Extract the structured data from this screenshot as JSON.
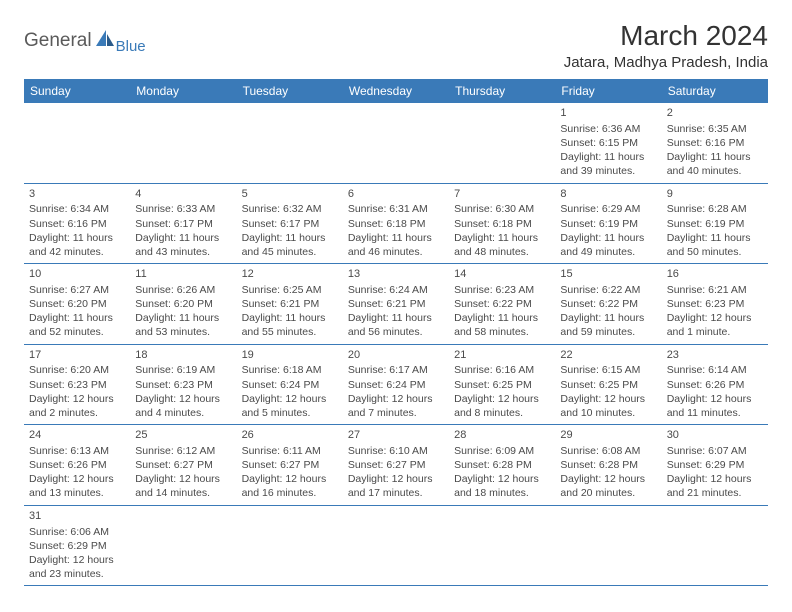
{
  "logo": {
    "general": "General",
    "blue": "Blue",
    "icon_color": "#3a7ab8"
  },
  "header": {
    "month_title": "March 2024",
    "location": "Jatara, Madhya Pradesh, India"
  },
  "colors": {
    "header_bg": "#3a7ab8",
    "header_text": "#ffffff",
    "row_border": "#3a7ab8",
    "text": "#4a4a4a"
  },
  "weekdays": [
    "Sunday",
    "Monday",
    "Tuesday",
    "Wednesday",
    "Thursday",
    "Friday",
    "Saturday"
  ],
  "weeks": [
    [
      null,
      null,
      null,
      null,
      null,
      {
        "n": "1",
        "sr": "Sunrise: 6:36 AM",
        "ss": "Sunset: 6:15 PM",
        "d1": "Daylight: 11 hours",
        "d2": "and 39 minutes."
      },
      {
        "n": "2",
        "sr": "Sunrise: 6:35 AM",
        "ss": "Sunset: 6:16 PM",
        "d1": "Daylight: 11 hours",
        "d2": "and 40 minutes."
      }
    ],
    [
      {
        "n": "3",
        "sr": "Sunrise: 6:34 AM",
        "ss": "Sunset: 6:16 PM",
        "d1": "Daylight: 11 hours",
        "d2": "and 42 minutes."
      },
      {
        "n": "4",
        "sr": "Sunrise: 6:33 AM",
        "ss": "Sunset: 6:17 PM",
        "d1": "Daylight: 11 hours",
        "d2": "and 43 minutes."
      },
      {
        "n": "5",
        "sr": "Sunrise: 6:32 AM",
        "ss": "Sunset: 6:17 PM",
        "d1": "Daylight: 11 hours",
        "d2": "and 45 minutes."
      },
      {
        "n": "6",
        "sr": "Sunrise: 6:31 AM",
        "ss": "Sunset: 6:18 PM",
        "d1": "Daylight: 11 hours",
        "d2": "and 46 minutes."
      },
      {
        "n": "7",
        "sr": "Sunrise: 6:30 AM",
        "ss": "Sunset: 6:18 PM",
        "d1": "Daylight: 11 hours",
        "d2": "and 48 minutes."
      },
      {
        "n": "8",
        "sr": "Sunrise: 6:29 AM",
        "ss": "Sunset: 6:19 PM",
        "d1": "Daylight: 11 hours",
        "d2": "and 49 minutes."
      },
      {
        "n": "9",
        "sr": "Sunrise: 6:28 AM",
        "ss": "Sunset: 6:19 PM",
        "d1": "Daylight: 11 hours",
        "d2": "and 50 minutes."
      }
    ],
    [
      {
        "n": "10",
        "sr": "Sunrise: 6:27 AM",
        "ss": "Sunset: 6:20 PM",
        "d1": "Daylight: 11 hours",
        "d2": "and 52 minutes."
      },
      {
        "n": "11",
        "sr": "Sunrise: 6:26 AM",
        "ss": "Sunset: 6:20 PM",
        "d1": "Daylight: 11 hours",
        "d2": "and 53 minutes."
      },
      {
        "n": "12",
        "sr": "Sunrise: 6:25 AM",
        "ss": "Sunset: 6:21 PM",
        "d1": "Daylight: 11 hours",
        "d2": "and 55 minutes."
      },
      {
        "n": "13",
        "sr": "Sunrise: 6:24 AM",
        "ss": "Sunset: 6:21 PM",
        "d1": "Daylight: 11 hours",
        "d2": "and 56 minutes."
      },
      {
        "n": "14",
        "sr": "Sunrise: 6:23 AM",
        "ss": "Sunset: 6:22 PM",
        "d1": "Daylight: 11 hours",
        "d2": "and 58 minutes."
      },
      {
        "n": "15",
        "sr": "Sunrise: 6:22 AM",
        "ss": "Sunset: 6:22 PM",
        "d1": "Daylight: 11 hours",
        "d2": "and 59 minutes."
      },
      {
        "n": "16",
        "sr": "Sunrise: 6:21 AM",
        "ss": "Sunset: 6:23 PM",
        "d1": "Daylight: 12 hours",
        "d2": "and 1 minute."
      }
    ],
    [
      {
        "n": "17",
        "sr": "Sunrise: 6:20 AM",
        "ss": "Sunset: 6:23 PM",
        "d1": "Daylight: 12 hours",
        "d2": "and 2 minutes."
      },
      {
        "n": "18",
        "sr": "Sunrise: 6:19 AM",
        "ss": "Sunset: 6:23 PM",
        "d1": "Daylight: 12 hours",
        "d2": "and 4 minutes."
      },
      {
        "n": "19",
        "sr": "Sunrise: 6:18 AM",
        "ss": "Sunset: 6:24 PM",
        "d1": "Daylight: 12 hours",
        "d2": "and 5 minutes."
      },
      {
        "n": "20",
        "sr": "Sunrise: 6:17 AM",
        "ss": "Sunset: 6:24 PM",
        "d1": "Daylight: 12 hours",
        "d2": "and 7 minutes."
      },
      {
        "n": "21",
        "sr": "Sunrise: 6:16 AM",
        "ss": "Sunset: 6:25 PM",
        "d1": "Daylight: 12 hours",
        "d2": "and 8 minutes."
      },
      {
        "n": "22",
        "sr": "Sunrise: 6:15 AM",
        "ss": "Sunset: 6:25 PM",
        "d1": "Daylight: 12 hours",
        "d2": "and 10 minutes."
      },
      {
        "n": "23",
        "sr": "Sunrise: 6:14 AM",
        "ss": "Sunset: 6:26 PM",
        "d1": "Daylight: 12 hours",
        "d2": "and 11 minutes."
      }
    ],
    [
      {
        "n": "24",
        "sr": "Sunrise: 6:13 AM",
        "ss": "Sunset: 6:26 PM",
        "d1": "Daylight: 12 hours",
        "d2": "and 13 minutes."
      },
      {
        "n": "25",
        "sr": "Sunrise: 6:12 AM",
        "ss": "Sunset: 6:27 PM",
        "d1": "Daylight: 12 hours",
        "d2": "and 14 minutes."
      },
      {
        "n": "26",
        "sr": "Sunrise: 6:11 AM",
        "ss": "Sunset: 6:27 PM",
        "d1": "Daylight: 12 hours",
        "d2": "and 16 minutes."
      },
      {
        "n": "27",
        "sr": "Sunrise: 6:10 AM",
        "ss": "Sunset: 6:27 PM",
        "d1": "Daylight: 12 hours",
        "d2": "and 17 minutes."
      },
      {
        "n": "28",
        "sr": "Sunrise: 6:09 AM",
        "ss": "Sunset: 6:28 PM",
        "d1": "Daylight: 12 hours",
        "d2": "and 18 minutes."
      },
      {
        "n": "29",
        "sr": "Sunrise: 6:08 AM",
        "ss": "Sunset: 6:28 PM",
        "d1": "Daylight: 12 hours",
        "d2": "and 20 minutes."
      },
      {
        "n": "30",
        "sr": "Sunrise: 6:07 AM",
        "ss": "Sunset: 6:29 PM",
        "d1": "Daylight: 12 hours",
        "d2": "and 21 minutes."
      }
    ],
    [
      {
        "n": "31",
        "sr": "Sunrise: 6:06 AM",
        "ss": "Sunset: 6:29 PM",
        "d1": "Daylight: 12 hours",
        "d2": "and 23 minutes."
      },
      null,
      null,
      null,
      null,
      null,
      null
    ]
  ]
}
